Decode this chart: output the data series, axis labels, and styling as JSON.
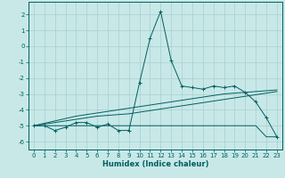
{
  "xlabel": "Humidex (Indice chaleur)",
  "x": [
    0,
    1,
    2,
    3,
    4,
    5,
    6,
    7,
    8,
    9,
    10,
    11,
    12,
    13,
    14,
    15,
    16,
    17,
    18,
    19,
    20,
    21,
    22,
    23
  ],
  "line1": [
    -5.0,
    -5.0,
    -5.3,
    -5.1,
    -4.8,
    -4.8,
    -5.1,
    -4.9,
    -5.3,
    -5.3,
    -2.3,
    0.5,
    2.2,
    -0.9,
    -2.5,
    -2.6,
    -2.7,
    -2.5,
    -2.6,
    -2.5,
    -2.9,
    -3.5,
    -4.5,
    -5.7
  ],
  "line2": [
    -5.0,
    -4.85,
    -4.7,
    -4.55,
    -4.4,
    -4.3,
    -4.2,
    -4.1,
    -4.0,
    -3.9,
    -3.8,
    -3.7,
    -3.6,
    -3.5,
    -3.4,
    -3.3,
    -3.2,
    -3.1,
    -3.0,
    -2.95,
    -2.9,
    -2.85,
    -2.8,
    -2.75
  ],
  "line3": [
    -5.0,
    -4.9,
    -4.8,
    -4.7,
    -4.6,
    -4.5,
    -4.4,
    -4.35,
    -4.3,
    -4.25,
    -4.15,
    -4.05,
    -3.95,
    -3.85,
    -3.75,
    -3.65,
    -3.55,
    -3.45,
    -3.35,
    -3.25,
    -3.15,
    -3.05,
    -2.95,
    -2.85
  ],
  "line4": [
    -5.0,
    -5.0,
    -5.0,
    -5.0,
    -5.0,
    -5.0,
    -5.0,
    -5.0,
    -5.0,
    -5.0,
    -5.0,
    -5.0,
    -5.0,
    -5.0,
    -5.0,
    -5.0,
    -5.0,
    -5.0,
    -5.0,
    -5.0,
    -5.0,
    -5.0,
    -5.7,
    -5.7
  ],
  "line_color": "#005f5f",
  "bg_color": "#c8e8e8",
  "grid_color": "#a8cece",
  "ylim": [
    -6.5,
    2.8
  ],
  "yticks": [
    -6,
    -5,
    -4,
    -3,
    -2,
    -1,
    0,
    1,
    2
  ],
  "xticks": [
    0,
    1,
    2,
    3,
    4,
    5,
    6,
    7,
    8,
    9,
    10,
    11,
    12,
    13,
    14,
    15,
    16,
    17,
    18,
    19,
    20,
    21,
    22,
    23
  ]
}
